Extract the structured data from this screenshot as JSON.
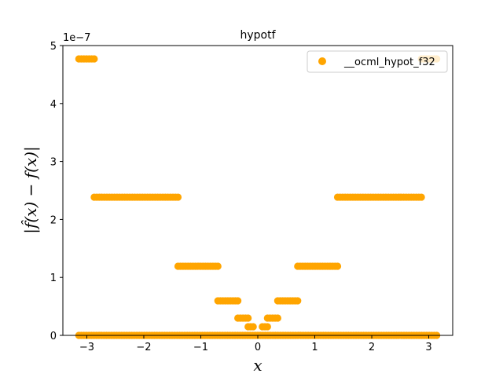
{
  "chart_data": {
    "type": "scatter",
    "title": "hypotf",
    "xlabel": "x",
    "ylabel": "|f̂(x) − f(x)|",
    "y_offset_text": "1e−7",
    "xlim": [
      -3.42,
      3.42
    ],
    "ylim": [
      0,
      5
    ],
    "xticks": [
      -3,
      -2,
      -1,
      0,
      1,
      2,
      3
    ],
    "xtick_labels": [
      "−3",
      "−2",
      "−1",
      "0",
      "1",
      "2",
      "3"
    ],
    "yticks": [
      0,
      1,
      2,
      3,
      4,
      5
    ],
    "ytick_labels": [
      "0",
      "1",
      "2",
      "3",
      "4",
      "5"
    ],
    "grid": false,
    "legend_position": "top-right",
    "color": "#ffa500",
    "series": [
      {
        "name": "__ocml_hypot_f32",
        "segments": [
          {
            "x": [
              -3.14,
              3.14
            ],
            "y": 0
          },
          {
            "x": [
              -3.14,
              -2.87
            ],
            "y": 4.77
          },
          {
            "x": [
              2.87,
              3.14
            ],
            "y": 4.77
          },
          {
            "x": [
              -2.87,
              -1.4
            ],
            "y": 2.384
          },
          {
            "x": [
              1.4,
              2.87
            ],
            "y": 2.384
          },
          {
            "x": [
              -1.4,
              -0.7
            ],
            "y": 1.192
          },
          {
            "x": [
              0.7,
              1.4
            ],
            "y": 1.192
          },
          {
            "x": [
              -0.7,
              -0.35
            ],
            "y": 0.596
          },
          {
            "x": [
              0.35,
              0.7
            ],
            "y": 0.596
          },
          {
            "x": [
              -0.35,
              -0.17
            ],
            "y": 0.298
          },
          {
            "x": [
              0.17,
              0.35
            ],
            "y": 0.298
          },
          {
            "x": [
              -0.17,
              -0.08
            ],
            "y": 0.149
          },
          {
            "x": [
              0.08,
              0.17
            ],
            "y": 0.149
          }
        ]
      }
    ]
  }
}
